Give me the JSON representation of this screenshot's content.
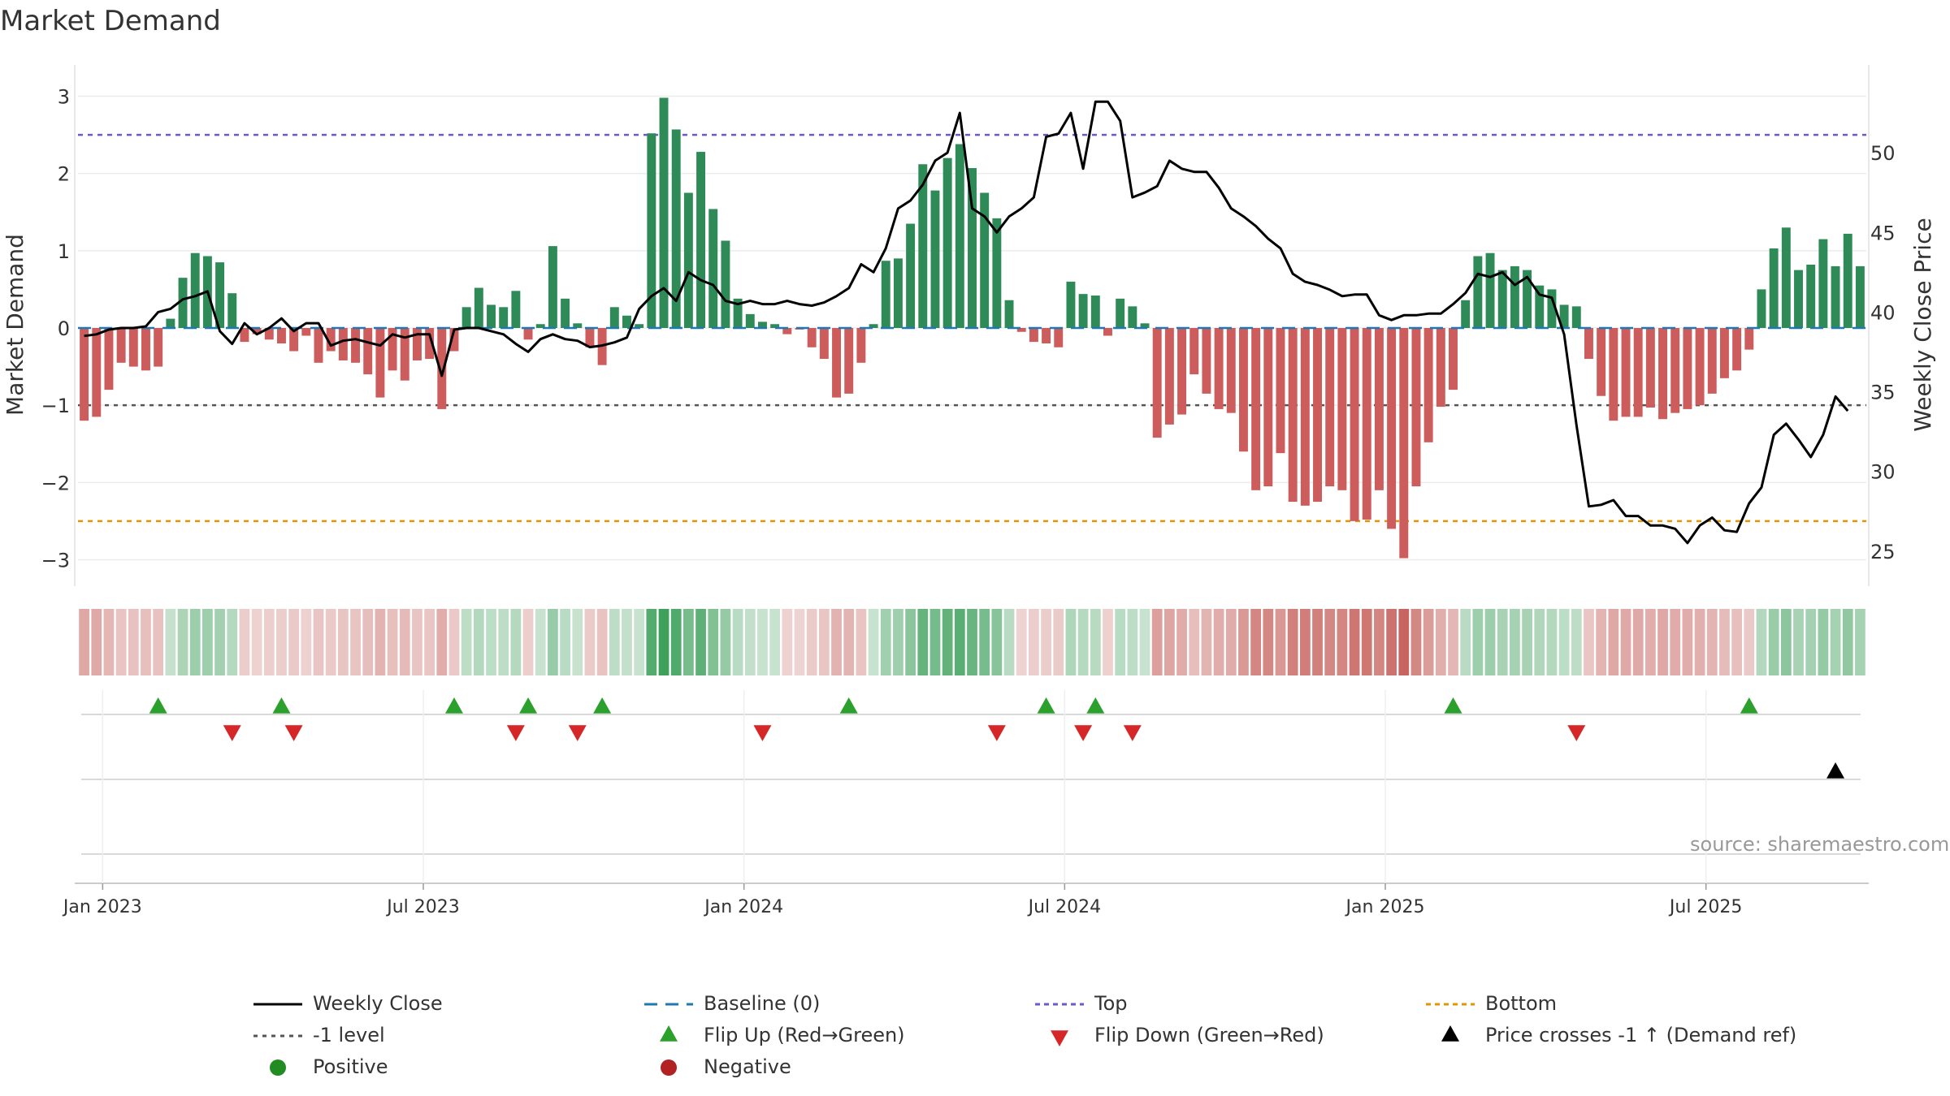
{
  "title": "Market Demand",
  "source": "source: sharemaestro.com",
  "colors": {
    "positive_bar": "#2e8b57",
    "negative_bar": "#cd5c5c",
    "price_line": "#000000",
    "top_line": "#6a5acd",
    "bottom_line": "#e69500",
    "minus1_line": "#555555",
    "baseline": "#1f77b4",
    "flip_up": "#2ca02c",
    "flip_down": "#d62728",
    "positive_dot": "#228b22",
    "negative_dot": "#b22222",
    "cross_marker": "#000000"
  },
  "legend": {
    "weekly_close": "Weekly Close",
    "baseline": "Baseline (0)",
    "top": "Top",
    "bottom": "Bottom",
    "minus1": "-1 level",
    "flip_up": "Flip Up (Red→Green)",
    "flip_down": "Flip Down (Green→Red)",
    "price_cross": "Price crosses -1 ↑ (Demand ref)",
    "positive": "Positive",
    "negative": "Negative"
  },
  "chart_data": {
    "type": "bar+line",
    "title": "Market Demand",
    "ylabel": "Market Demand",
    "ylabel_right": "Weekly Close Price",
    "ylim": [
      -3.3,
      3.3
    ],
    "ylim_right": [
      23,
      55
    ],
    "yticks": [
      -3,
      -2,
      -1,
      0,
      1,
      2,
      3
    ],
    "ytick_labels": [
      "−3",
      "−2",
      "−1",
      "0",
      "1",
      "2",
      "3"
    ],
    "yticks_right": [
      25,
      30,
      35,
      40,
      45,
      50
    ],
    "ytick_labels_right": [
      "25",
      "30",
      "35",
      "40",
      "45",
      "50"
    ],
    "x_ticks": [
      {
        "week": 2,
        "label": "Jan 2023"
      },
      {
        "week": 28,
        "label": "Jul 2023"
      },
      {
        "week": 54,
        "label": "Jan 2024"
      },
      {
        "week": 80,
        "label": "Jul 2024"
      },
      {
        "week": 106,
        "label": "Jan 2025"
      },
      {
        "week": 132,
        "label": "Jul 2025"
      }
    ],
    "levels": {
      "top": 2.5,
      "bottom": -2.5,
      "minus1": -1,
      "baseline": 0
    },
    "demand": [
      -1.2,
      -1.15,
      -0.8,
      -0.45,
      -0.5,
      -0.55,
      -0.5,
      0.12,
      0.65,
      0.97,
      0.93,
      0.85,
      0.45,
      -0.18,
      -0.08,
      -0.15,
      -0.2,
      -0.3,
      -0.1,
      -0.45,
      -0.3,
      -0.42,
      -0.45,
      -0.6,
      -0.9,
      -0.55,
      -0.68,
      -0.42,
      -0.4,
      -1.05,
      -0.3,
      0.27,
      0.52,
      0.3,
      0.27,
      0.48,
      -0.15,
      0.05,
      1.06,
      0.38,
      0.06,
      -0.25,
      -0.48,
      0.27,
      0.16,
      0.05,
      2.52,
      2.98,
      2.57,
      1.75,
      2.28,
      1.54,
      1.13,
      0.38,
      0.18,
      0.08,
      0.05,
      -0.08,
      -0.02,
      -0.25,
      -0.4,
      -0.9,
      -0.85,
      -0.45,
      0.05,
      0.87,
      0.9,
      1.35,
      2.12,
      1.78,
      2.2,
      2.38,
      2.07,
      1.75,
      1.42,
      0.36,
      -0.05,
      -0.18,
      -0.2,
      -0.25,
      0.6,
      0.44,
      0.42,
      -0.1,
      0.38,
      0.28,
      0.06,
      -1.42,
      -1.25,
      -1.12,
      -0.6,
      -0.85,
      -1.05,
      -1.1,
      -1.6,
      -2.1,
      -2.05,
      -1.62,
      -2.25,
      -2.3,
      -2.25,
      -2.05,
      -2.1,
      -2.5,
      -2.48,
      -2.1,
      -2.6,
      -2.98,
      -2.05,
      -1.48,
      -1.02,
      -0.8,
      0.36,
      0.93,
      0.97,
      0.75,
      0.8,
      0.75,
      0.55,
      0.5,
      0.3,
      0.28,
      -0.4,
      -0.88,
      -1.2,
      -1.15,
      -1.15,
      -1.03,
      -1.18,
      -1.1,
      -1.05,
      -1.0,
      -0.85,
      -0.65,
      -0.55,
      -0.28,
      0.5,
      1.03,
      1.3,
      0.75,
      0.82,
      1.15,
      0.8,
      1.22,
      0.8
    ],
    "price": [
      38.5,
      38.6,
      38.9,
      39.0,
      39.0,
      39.1,
      40.0,
      40.2,
      40.8,
      41.0,
      41.3,
      38.8,
      38.0,
      39.3,
      38.6,
      39.0,
      39.6,
      38.8,
      39.3,
      39.3,
      37.9,
      38.2,
      38.3,
      38.1,
      37.9,
      38.6,
      38.4,
      38.6,
      38.6,
      36.0,
      38.9,
      39.0,
      39.0,
      38.8,
      38.6,
      38.0,
      37.5,
      38.3,
      38.6,
      38.3,
      38.2,
      37.8,
      37.9,
      38.1,
      38.4,
      40.2,
      41.0,
      41.5,
      40.7,
      42.5,
      42.0,
      41.7,
      40.7,
      40.5,
      40.7,
      40.5,
      40.5,
      40.7,
      40.5,
      40.4,
      40.6,
      41.0,
      41.5,
      43.0,
      42.5,
      44.0,
      46.5,
      47.0,
      48.0,
      49.5,
      50.0,
      52.5,
      46.5,
      46.0,
      45.0,
      46.0,
      46.5,
      47.2,
      51.0,
      51.2,
      52.5,
      49.0,
      53.2,
      53.2,
      52.0,
      47.2,
      47.5,
      47.9,
      49.5,
      49.0,
      48.8,
      48.8,
      47.8,
      46.5,
      46.0,
      45.4,
      44.6,
      44.0,
      42.4,
      41.9,
      41.7,
      41.4,
      41.0,
      41.1,
      41.1,
      39.8,
      39.5,
      39.8,
      39.8,
      39.9,
      39.9,
      40.5,
      41.2,
      42.4,
      42.2,
      42.5,
      41.7,
      42.2,
      41.1,
      40.9,
      38.6,
      32.9,
      27.8,
      27.9,
      28.2,
      27.2,
      27.2,
      26.6,
      26.6,
      26.4,
      25.5,
      26.6,
      27.1,
      26.3,
      26.2,
      28.0,
      29.0,
      32.3,
      33.0,
      32.0,
      30.9,
      32.3,
      34.7,
      33.8
    ],
    "flip_up_weeks": [
      6,
      16,
      30,
      36,
      42,
      62,
      78,
      82,
      111,
      135
    ],
    "flip_down_weeks": [
      12,
      17,
      35,
      40,
      55,
      74,
      81,
      85,
      121
    ],
    "price_cross_weeks": [
      142
    ],
    "positive_weeks": [],
    "negative_weeks": []
  }
}
